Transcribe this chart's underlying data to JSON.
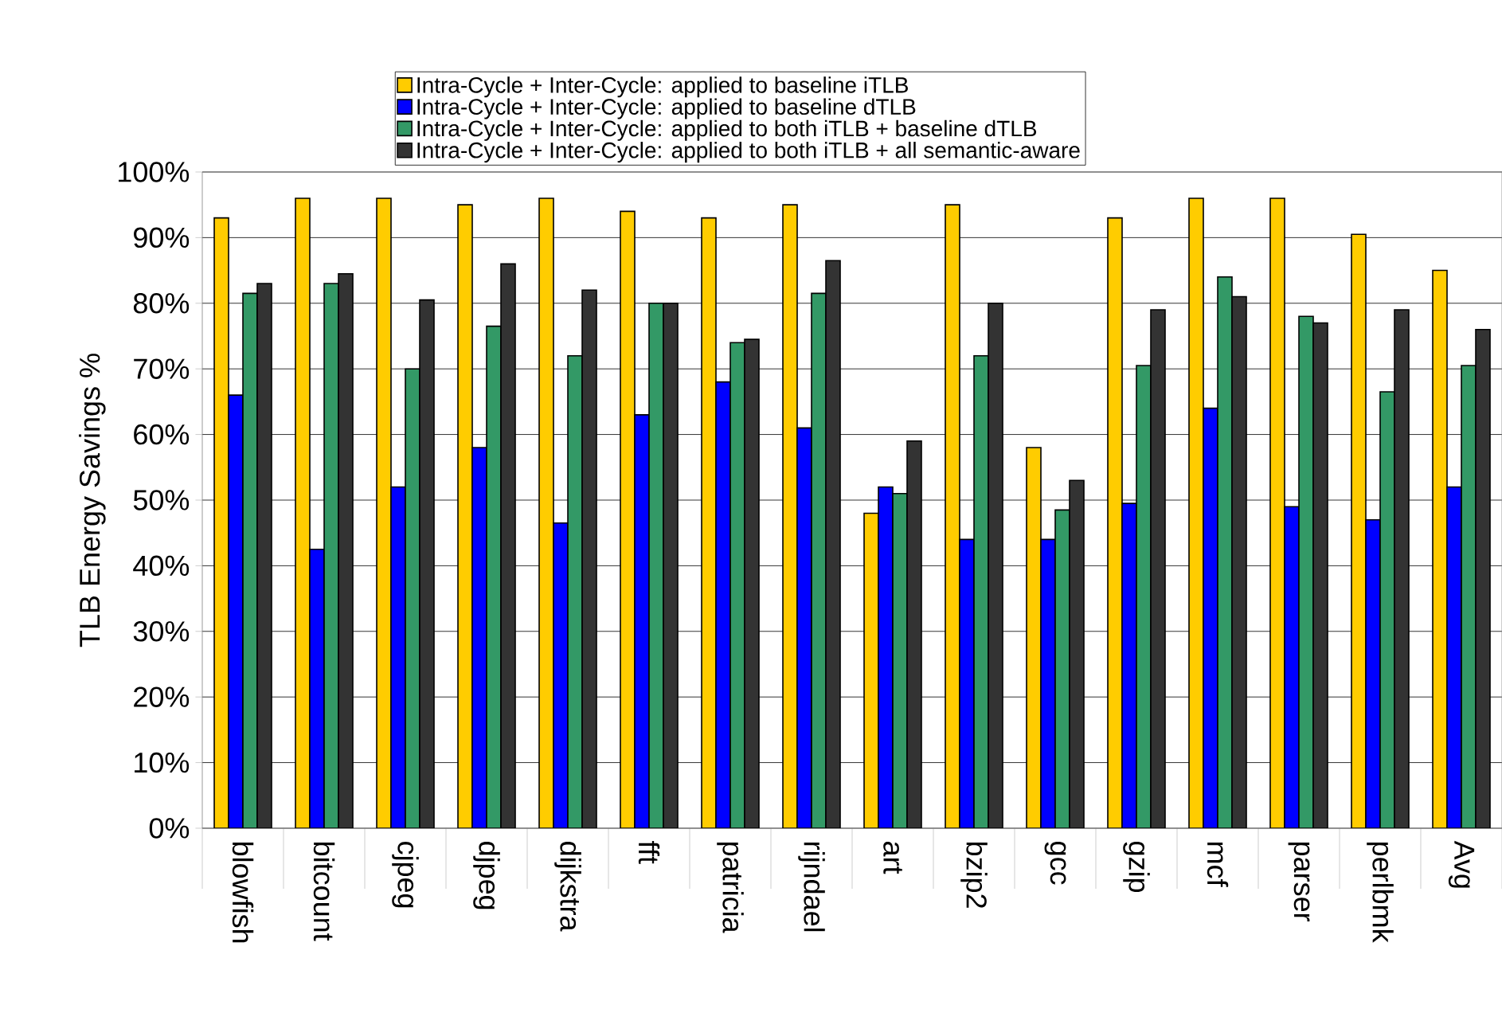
{
  "chart_data": {
    "type": "bar",
    "ylabel": "TLB Energy Savings %",
    "categories": [
      "blowfish",
      "bitcount",
      "cjpeg",
      "djpeg",
      "dijkstra",
      "fft",
      "patricia",
      "rijndael",
      "art",
      "bzip2",
      "gcc",
      "gzip",
      "mcf",
      "parser",
      "perlbmk",
      "Avg"
    ],
    "series": [
      {
        "name": "Intra-Cycle + Inter-Cycle: applied to  baseline iTLB",
        "color": "#ffcc00",
        "values": [
          93,
          96,
          96,
          95,
          96,
          94,
          93,
          95,
          48,
          95,
          58,
          93,
          96,
          96,
          90.5,
          85
        ]
      },
      {
        "name": "Intra-Cycle + Inter-Cycle: applied to  baseline dTLB",
        "color": "#0000ff",
        "values": [
          66,
          42.5,
          52,
          58,
          46.5,
          63,
          68,
          61,
          52,
          44,
          44,
          49.5,
          64,
          49,
          47,
          52
        ]
      },
      {
        "name": "Intra-Cycle + Inter-Cycle: applied to both iTLB + baseline dTLB",
        "color": "#339966",
        "values": [
          81.5,
          83,
          70,
          76.5,
          72,
          80,
          74,
          81.5,
          51,
          72,
          48.5,
          70.5,
          84,
          78,
          66.5,
          70.5
        ]
      },
      {
        "name": "Intra-Cycle + Inter-Cycle: applied to both iTLB + all semantic-aware",
        "color": "#333333",
        "values": [
          83,
          84.5,
          80.5,
          86,
          82,
          80,
          74.5,
          86.5,
          59,
          80,
          53,
          79,
          81,
          77,
          79,
          76
        ]
      }
    ],
    "ylim": [
      0,
      100
    ],
    "yticks": [
      {
        "value": 0,
        "label": "0%"
      },
      {
        "value": 10,
        "label": "10%"
      },
      {
        "value": 20,
        "label": "20%"
      },
      {
        "value": 30,
        "label": "30%"
      },
      {
        "value": 40,
        "label": "40%"
      },
      {
        "value": 50,
        "label": "50%"
      },
      {
        "value": 60,
        "label": "60%"
      },
      {
        "value": 70,
        "label": "70%"
      },
      {
        "value": 80,
        "label": "80%"
      },
      {
        "value": 90,
        "label": "90%"
      },
      {
        "value": 100,
        "label": "100%"
      }
    ],
    "grid": "y",
    "legend": "top"
  }
}
